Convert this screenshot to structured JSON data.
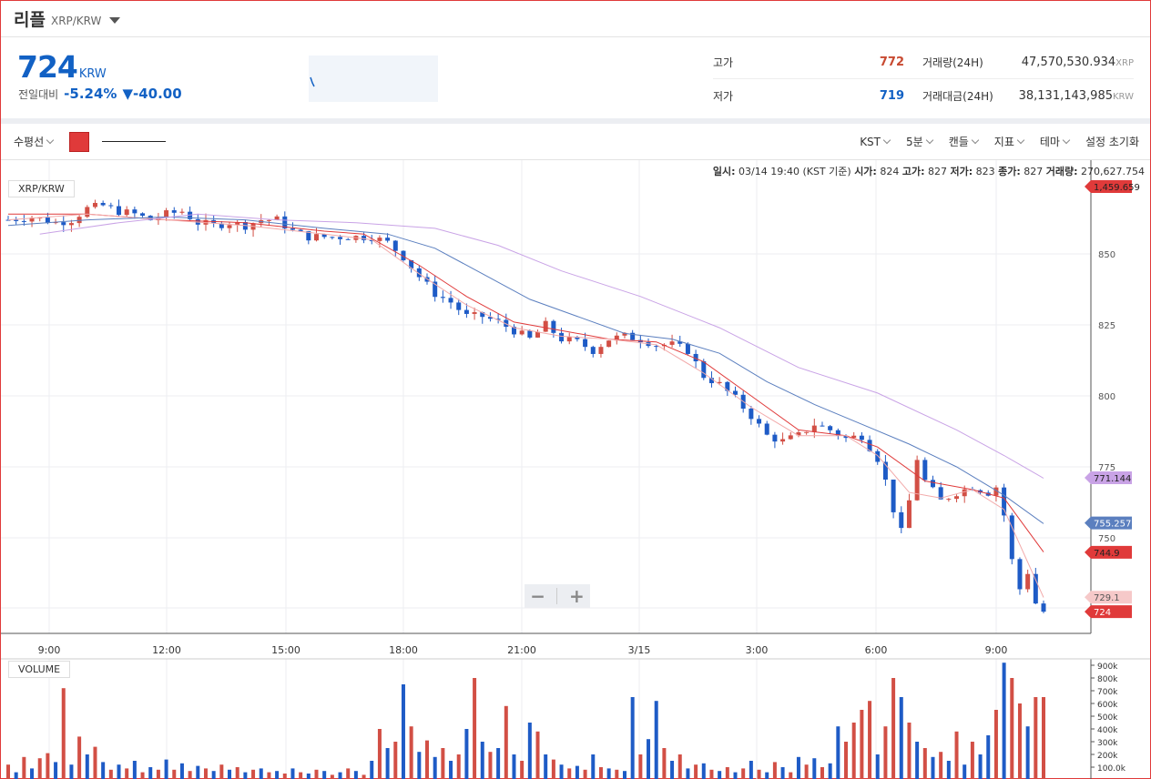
{
  "header": {
    "coin_name": "리플",
    "pair": "XRP/KRW"
  },
  "ticker": {
    "price": "724",
    "unit": "KRW",
    "change_label": "전일대비",
    "change_pct": "-5.24%",
    "change_amt": "▼-40.00",
    "high_label": "고가",
    "high_value": "772",
    "low_label": "저가",
    "low_value": "719",
    "volume_label": "거래량(24H)",
    "volume_value": "47,570,530.934",
    "volume_unit": "XRP",
    "amount_label": "거래대금(24H)",
    "amount_value": "38,131,143,985",
    "amount_unit": "KRW"
  },
  "toolbar": {
    "indicator": "수평선",
    "swatch_color": "#e03a3a",
    "timezone": "KST",
    "interval": "5분",
    "candle": "캔들",
    "indicators": "지표",
    "theme": "테마",
    "reset": "설정 초기화"
  },
  "info_line": {
    "time_label": "일시:",
    "time_value": "03/14 19:40 (KST 기준)",
    "open_label": "시가:",
    "open_value": "824",
    "high_label": "고가:",
    "high_value": "827",
    "low_label": "저가:",
    "low_value": "823",
    "close_label": "종가:",
    "close_value": "827",
    "vol_label": "거래량:",
    "vol_value": "270,627.754"
  },
  "pair_tag": "XRP/KRW",
  "volume_tag": "VOLUME",
  "zoom": {
    "minus": "−",
    "plus": "+"
  },
  "colors": {
    "up": "#d24f45",
    "down": "#1e5bc6",
    "ma_red": "#e03a3a",
    "ma_pink": "#f2a9a9",
    "ma_blue": "#5b7fbf",
    "ma_purple": "#c9a3e6"
  },
  "chart_data": {
    "type": "candlestick",
    "y_ticks": [
      850,
      825,
      800,
      775,
      750
    ],
    "ylim": [
      715,
      868
    ],
    "x_ticks": [
      "9:00",
      "12:00",
      "15:00",
      "18:00",
      "21:00",
      "3/15",
      "3:00",
      "6:00",
      "9:00"
    ],
    "price_tags": [
      {
        "label": "1,459.659",
        "value": 868,
        "color": "#e03a3a",
        "text_color": "#222"
      },
      {
        "label": "771.144",
        "value": 771.144,
        "color": "#c9a3e6",
        "text_color": "#222"
      },
      {
        "label": "755.257",
        "value": 755.257,
        "color": "#5b7fbf",
        "text_color": "#fff"
      },
      {
        "label": "744.9",
        "value": 744.9,
        "color": "#e03a3a",
        "text_color": "#222"
      },
      {
        "label": "729.1",
        "value": 729.1,
        "color": "#f6c9c9",
        "text_color": "#555"
      },
      {
        "label": "724",
        "value": 724,
        "color": "#e03a3a",
        "text_color": "#fff"
      }
    ],
    "price_path": [
      [
        0,
        862
      ],
      [
        3,
        863
      ],
      [
        6,
        861
      ],
      [
        8,
        862
      ],
      [
        10,
        866
      ],
      [
        12,
        867
      ],
      [
        14,
        865
      ],
      [
        16,
        864
      ],
      [
        18,
        862
      ],
      [
        20,
        864
      ],
      [
        22,
        865
      ],
      [
        24,
        861
      ],
      [
        26,
        860
      ],
      [
        28,
        861
      ],
      [
        30,
        860
      ],
      [
        32,
        862
      ],
      [
        34,
        862
      ],
      [
        36,
        858
      ],
      [
        38,
        856
      ],
      [
        40,
        856
      ],
      [
        42,
        856
      ],
      [
        44,
        856
      ],
      [
        46,
        856
      ],
      [
        48,
        854
      ],
      [
        50,
        849
      ],
      [
        52,
        842
      ],
      [
        54,
        836
      ],
      [
        56,
        833
      ],
      [
        58,
        828
      ],
      [
        60,
        828
      ],
      [
        62,
        826
      ],
      [
        64,
        823
      ],
      [
        66,
        820
      ],
      [
        68,
        825
      ],
      [
        70,
        820
      ],
      [
        72,
        819
      ],
      [
        74,
        816
      ],
      [
        76,
        820
      ],
      [
        78,
        821
      ],
      [
        80,
        820
      ],
      [
        82,
        818
      ],
      [
        84,
        818
      ],
      [
        86,
        816
      ],
      [
        88,
        807
      ],
      [
        90,
        804
      ],
      [
        92,
        799
      ],
      [
        94,
        793
      ],
      [
        96,
        786
      ],
      [
        98,
        784
      ],
      [
        100,
        786
      ],
      [
        102,
        790
      ],
      [
        104,
        788
      ],
      [
        106,
        785
      ],
      [
        108,
        786
      ],
      [
        110,
        778
      ],
      [
        111,
        770
      ],
      [
        112,
        760
      ],
      [
        113,
        752
      ],
      [
        114,
        763
      ],
      [
        115,
        778
      ],
      [
        116,
        770
      ],
      [
        118,
        763
      ],
      [
        120,
        766
      ],
      [
        122,
        768
      ],
      [
        124,
        766
      ],
      [
        125,
        768
      ],
      [
        126,
        758
      ],
      [
        127,
        742
      ],
      [
        128,
        732
      ],
      [
        129,
        738
      ],
      [
        130,
        727
      ],
      [
        131,
        724
      ]
    ],
    "ma_series": [
      {
        "name": "MA-red",
        "color": "#e03a3a",
        "points": [
          [
            0,
            864
          ],
          [
            10,
            864
          ],
          [
            20,
            862
          ],
          [
            30,
            861
          ],
          [
            40,
            858
          ],
          [
            45,
            857
          ],
          [
            52,
            846
          ],
          [
            58,
            835
          ],
          [
            64,
            826
          ],
          [
            70,
            823
          ],
          [
            76,
            820
          ],
          [
            82,
            819
          ],
          [
            88,
            812
          ],
          [
            94,
            800
          ],
          [
            100,
            788
          ],
          [
            106,
            786
          ],
          [
            110,
            782
          ],
          [
            116,
            770
          ],
          [
            122,
            767
          ],
          [
            126,
            764
          ],
          [
            131,
            745
          ]
        ]
      },
      {
        "name": "MA-pink",
        "color": "#f2a9a9",
        "points": [
          [
            0,
            862
          ],
          [
            10,
            864
          ],
          [
            20,
            862
          ],
          [
            30,
            860
          ],
          [
            40,
            857
          ],
          [
            46,
            855
          ],
          [
            52,
            843
          ],
          [
            58,
            832
          ],
          [
            64,
            824
          ],
          [
            70,
            821
          ],
          [
            76,
            820
          ],
          [
            82,
            818
          ],
          [
            88,
            808
          ],
          [
            94,
            796
          ],
          [
            100,
            786
          ],
          [
            106,
            786
          ],
          [
            110,
            779
          ],
          [
            114,
            766
          ],
          [
            118,
            764
          ],
          [
            122,
            767
          ],
          [
            126,
            760
          ],
          [
            131,
            729
          ]
        ]
      },
      {
        "name": "MA-blue",
        "color": "#5b7fbf",
        "points": [
          [
            0,
            860
          ],
          [
            10,
            862
          ],
          [
            20,
            863
          ],
          [
            30,
            862
          ],
          [
            40,
            859
          ],
          [
            48,
            857
          ],
          [
            54,
            852
          ],
          [
            60,
            843
          ],
          [
            66,
            834
          ],
          [
            72,
            828
          ],
          [
            78,
            822
          ],
          [
            84,
            820
          ],
          [
            90,
            815
          ],
          [
            96,
            805
          ],
          [
            102,
            797
          ],
          [
            108,
            790
          ],
          [
            114,
            783
          ],
          [
            120,
            775
          ],
          [
            126,
            765
          ],
          [
            131,
            755
          ]
        ]
      },
      {
        "name": "MA-purple",
        "color": "#c9a3e6",
        "points": [
          [
            4,
            857
          ],
          [
            14,
            861
          ],
          [
            24,
            864
          ],
          [
            34,
            862
          ],
          [
            44,
            861
          ],
          [
            54,
            859
          ],
          [
            62,
            853
          ],
          [
            70,
            844
          ],
          [
            80,
            835
          ],
          [
            90,
            824
          ],
          [
            100,
            810
          ],
          [
            110,
            801
          ],
          [
            120,
            788
          ],
          [
            126,
            779
          ],
          [
            131,
            771
          ]
        ]
      }
    ],
    "volume_ticks": [
      "900k",
      "800k",
      "700k",
      "600k",
      "500k",
      "400k",
      "300k",
      "200k",
      "100.0k"
    ],
    "volume_max": 900000,
    "volumes": [
      [
        0,
        120000,
        "u"
      ],
      [
        1,
        60000,
        "d"
      ],
      [
        2,
        180000,
        "u"
      ],
      [
        3,
        90000,
        "d"
      ],
      [
        4,
        170000,
        "u"
      ],
      [
        5,
        210000,
        "u"
      ],
      [
        6,
        140000,
        "d"
      ],
      [
        7,
        720000,
        "u"
      ],
      [
        8,
        120000,
        "d"
      ],
      [
        9,
        340000,
        "u"
      ],
      [
        10,
        200000,
        "d"
      ],
      [
        11,
        260000,
        "u"
      ],
      [
        12,
        140000,
        "d"
      ],
      [
        13,
        80000,
        "u"
      ],
      [
        14,
        120000,
        "d"
      ],
      [
        15,
        90000,
        "u"
      ],
      [
        16,
        150000,
        "d"
      ],
      [
        17,
        60000,
        "u"
      ],
      [
        18,
        100000,
        "d"
      ],
      [
        19,
        80000,
        "u"
      ],
      [
        20,
        160000,
        "d"
      ],
      [
        21,
        80000,
        "u"
      ],
      [
        22,
        130000,
        "d"
      ],
      [
        23,
        70000,
        "u"
      ],
      [
        24,
        110000,
        "d"
      ],
      [
        25,
        90000,
        "u"
      ],
      [
        26,
        70000,
        "d"
      ],
      [
        27,
        120000,
        "u"
      ],
      [
        28,
        80000,
        "d"
      ],
      [
        29,
        100000,
        "u"
      ],
      [
        30,
        60000,
        "d"
      ],
      [
        31,
        80000,
        "u"
      ],
      [
        32,
        90000,
        "d"
      ],
      [
        33,
        60000,
        "u"
      ],
      [
        34,
        70000,
        "d"
      ],
      [
        35,
        50000,
        "u"
      ],
      [
        36,
        90000,
        "d"
      ],
      [
        37,
        60000,
        "u"
      ],
      [
        38,
        50000,
        "d"
      ],
      [
        39,
        80000,
        "u"
      ],
      [
        40,
        70000,
        "d"
      ],
      [
        41,
        40000,
        "u"
      ],
      [
        42,
        60000,
        "d"
      ],
      [
        43,
        90000,
        "u"
      ],
      [
        44,
        70000,
        "d"
      ],
      [
        45,
        40000,
        "u"
      ],
      [
        46,
        150000,
        "d"
      ],
      [
        47,
        400000,
        "u"
      ],
      [
        48,
        250000,
        "d"
      ],
      [
        49,
        300000,
        "u"
      ],
      [
        50,
        750000,
        "d"
      ],
      [
        51,
        420000,
        "u"
      ],
      [
        52,
        220000,
        "d"
      ],
      [
        53,
        310000,
        "u"
      ],
      [
        54,
        180000,
        "d"
      ],
      [
        55,
        250000,
        "u"
      ],
      [
        56,
        150000,
        "d"
      ],
      [
        57,
        200000,
        "u"
      ],
      [
        58,
        400000,
        "d"
      ],
      [
        59,
        800000,
        "u"
      ],
      [
        60,
        300000,
        "d"
      ],
      [
        61,
        220000,
        "u"
      ],
      [
        62,
        250000,
        "d"
      ],
      [
        63,
        580000,
        "u"
      ],
      [
        64,
        200000,
        "d"
      ],
      [
        65,
        150000,
        "u"
      ],
      [
        66,
        450000,
        "d"
      ],
      [
        67,
        380000,
        "u"
      ],
      [
        68,
        200000,
        "d"
      ],
      [
        69,
        160000,
        "u"
      ],
      [
        70,
        120000,
        "d"
      ],
      [
        71,
        90000,
        "u"
      ],
      [
        72,
        110000,
        "d"
      ],
      [
        73,
        80000,
        "u"
      ],
      [
        74,
        200000,
        "d"
      ],
      [
        75,
        100000,
        "u"
      ],
      [
        76,
        90000,
        "d"
      ],
      [
        77,
        80000,
        "u"
      ],
      [
        78,
        70000,
        "d"
      ],
      [
        79,
        650000,
        "d"
      ],
      [
        80,
        200000,
        "u"
      ],
      [
        81,
        320000,
        "d"
      ],
      [
        82,
        620000,
        "d"
      ],
      [
        83,
        250000,
        "u"
      ],
      [
        84,
        150000,
        "d"
      ],
      [
        85,
        200000,
        "u"
      ],
      [
        86,
        90000,
        "d"
      ],
      [
        87,
        120000,
        "u"
      ],
      [
        88,
        130000,
        "d"
      ],
      [
        89,
        80000,
        "u"
      ],
      [
        90,
        70000,
        "d"
      ],
      [
        91,
        100000,
        "u"
      ],
      [
        92,
        60000,
        "d"
      ],
      [
        93,
        90000,
        "u"
      ],
      [
        94,
        150000,
        "d"
      ],
      [
        95,
        80000,
        "u"
      ],
      [
        96,
        60000,
        "d"
      ],
      [
        97,
        140000,
        "u"
      ],
      [
        98,
        100000,
        "d"
      ],
      [
        99,
        60000,
        "u"
      ],
      [
        100,
        180000,
        "d"
      ],
      [
        101,
        120000,
        "u"
      ],
      [
        102,
        170000,
        "d"
      ],
      [
        103,
        100000,
        "u"
      ],
      [
        104,
        130000,
        "d"
      ],
      [
        105,
        420000,
        "d"
      ],
      [
        106,
        300000,
        "u"
      ],
      [
        107,
        450000,
        "u"
      ],
      [
        108,
        550000,
        "u"
      ],
      [
        109,
        620000,
        "u"
      ],
      [
        110,
        200000,
        "d"
      ],
      [
        111,
        420000,
        "u"
      ],
      [
        112,
        800000,
        "u"
      ],
      [
        113,
        650000,
        "d"
      ],
      [
        114,
        450000,
        "u"
      ],
      [
        115,
        300000,
        "d"
      ],
      [
        116,
        250000,
        "u"
      ],
      [
        117,
        180000,
        "d"
      ],
      [
        118,
        220000,
        "u"
      ],
      [
        119,
        150000,
        "d"
      ],
      [
        120,
        380000,
        "u"
      ],
      [
        121,
        120000,
        "d"
      ],
      [
        122,
        300000,
        "u"
      ],
      [
        123,
        200000,
        "d"
      ],
      [
        124,
        350000,
        "d"
      ],
      [
        125,
        550000,
        "u"
      ],
      [
        126,
        920000,
        "d"
      ],
      [
        127,
        800000,
        "u"
      ],
      [
        128,
        600000,
        "u"
      ],
      [
        129,
        420000,
        "d"
      ],
      [
        130,
        650000,
        "u"
      ],
      [
        131,
        650000,
        "u"
      ]
    ]
  }
}
